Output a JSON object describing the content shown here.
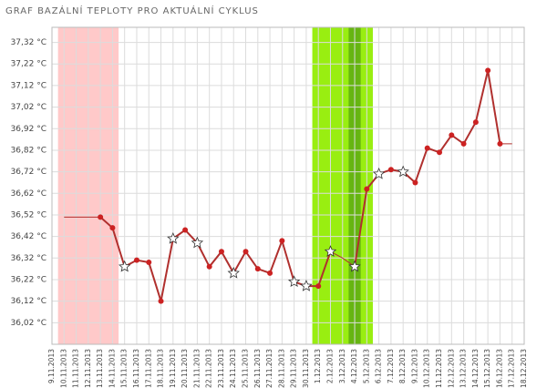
{
  "chart_data": {
    "type": "line",
    "title": "GRAF BAZÁLNÍ TEPLOTY PRO AKTUÁLNÍ CYKLUS",
    "categories": [
      "9.11.2013",
      "10.11.2013",
      "11.11.2013",
      "12.11.2013",
      "13.11.2013",
      "14.11.2013",
      "15.11.2013",
      "16.11.2013",
      "17.11.2013",
      "18.11.2013",
      "19.11.2013",
      "20.11.2013",
      "21.11.2013",
      "22.11.2013",
      "23.11.2013",
      "24.11.2013",
      "25.11.2013",
      "26.11.2013",
      "27.11.2013",
      "28.11.2013",
      "29.11.2013",
      "30.11.2013",
      "1.12.2013",
      "2.12.2013",
      "3.12.2013",
      "4.12.2013",
      "5.12.2013",
      "6.12.2013",
      "7.12.2013",
      "8.12.2013",
      "9.12.2013",
      "10.12.2013",
      "11.12.2013",
      "12.12.2013",
      "13.12.2013",
      "14.12.2013",
      "15.12.2013",
      "16.12.2013",
      "17.12.2013",
      "18.12.2013"
    ],
    "series": [
      {
        "color": "#b0302e",
        "marker_color": "#cc2222",
        "values": [
          null,
          null,
          null,
          null,
          36.51,
          36.46,
          36.28,
          36.31,
          36.3,
          36.12,
          36.41,
          36.45,
          36.39,
          36.28,
          36.35,
          36.25,
          36.35,
          36.27,
          36.25,
          36.4,
          36.21,
          36.19,
          36.19,
          36.35,
          null,
          36.28,
          36.64,
          36.71,
          36.73,
          36.72,
          36.67,
          36.83,
          36.81,
          36.89,
          36.85,
          36.95,
          37.19,
          36.85,
          null,
          null
        ],
        "markers": [
          null,
          null,
          null,
          null,
          "dot",
          "dot",
          "star",
          "dot",
          "dot",
          "dot",
          "star",
          "dot",
          "star",
          "dot",
          "dot",
          "star",
          "dot",
          "dot",
          "dot",
          "dot",
          "star",
          "star",
          "dot",
          "star",
          null,
          "star",
          "dot",
          "star",
          "dot",
          "star",
          "dot",
          "dot",
          "dot",
          "dot",
          "dot",
          "dot",
          "dot",
          "dot",
          null,
          null
        ]
      },
      {
        "color": "#b0302e",
        "values": [
          null,
          36.51,
          36.51,
          36.51,
          36.51,
          null,
          null,
          null,
          null,
          null,
          null,
          null,
          null,
          null,
          null,
          null,
          null,
          null,
          null,
          null,
          null,
          null,
          null,
          36.35,
          36.32,
          36.28,
          null,
          null,
          null,
          null,
          null,
          null,
          null,
          null,
          null,
          null,
          null,
          36.85,
          36.85,
          null
        ]
      }
    ],
    "regions": [
      {
        "from": "10.11.2013",
        "to": "14.11.2013",
        "color": "#ffc9c9"
      },
      {
        "from": "1.12.2013",
        "to": "5.12.2013",
        "color": "#99ee11"
      },
      {
        "from": "4.12.2013",
        "to": "4.12.2013",
        "color": "#66b511"
      }
    ],
    "ylim": [
      35.92,
      37.39
    ],
    "yticks": [
      {
        "value": 36.02,
        "label": "36,02 °C"
      },
      {
        "value": 36.12,
        "label": "36,12 °C"
      },
      {
        "value": 36.22,
        "label": "36,22 °C"
      },
      {
        "value": 36.32,
        "label": "36,32 °C"
      },
      {
        "value": 36.42,
        "label": "36,42 °C"
      },
      {
        "value": 36.52,
        "label": "36,52 °C"
      },
      {
        "value": 36.62,
        "label": "36,62 °C"
      },
      {
        "value": 36.72,
        "label": "36,72 °C"
      },
      {
        "value": 36.82,
        "label": "36,82 °C"
      },
      {
        "value": 36.92,
        "label": "36,92 °C"
      },
      {
        "value": 37.02,
        "label": "37,02 °C"
      },
      {
        "value": 37.12,
        "label": "37,12 °C"
      },
      {
        "value": 37.22,
        "label": "37,22 °C"
      },
      {
        "value": 37.32,
        "label": "37,32 °C"
      }
    ],
    "grid": true
  }
}
